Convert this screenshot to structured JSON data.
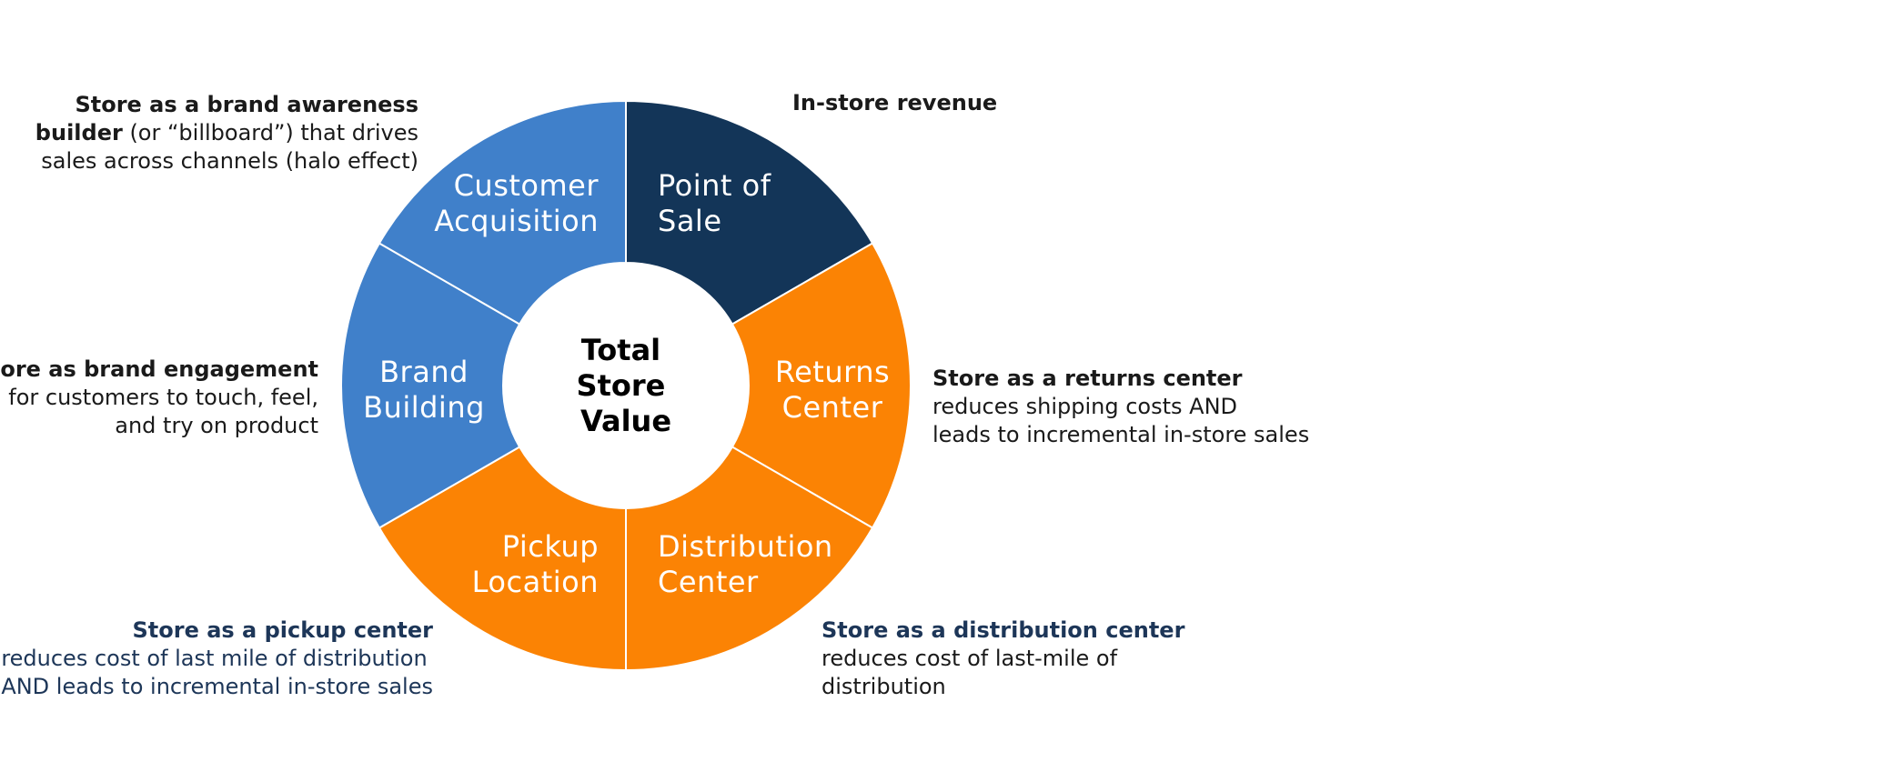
{
  "diagram": {
    "center_title_lines": [
      "Total",
      "Store",
      "Value"
    ],
    "colors": {
      "navy": "#133558",
      "orange": "#fb8304",
      "blue": "#4080ca",
      "divider": "#ffffff"
    },
    "segments": [
      {
        "id": "point-of-sale",
        "lines": [
          "Point of",
          "Sale"
        ],
        "color": "#133558"
      },
      {
        "id": "returns-center",
        "lines": [
          "Returns",
          "Center"
        ],
        "color": "#fb8304"
      },
      {
        "id": "distribution-center",
        "lines": [
          "Distribution",
          "Center"
        ],
        "color": "#fb8304"
      },
      {
        "id": "pickup-location",
        "lines": [
          "Pickup",
          "Location"
        ],
        "color": "#fb8304"
      },
      {
        "id": "brand-building",
        "lines": [
          "Brand",
          "Building"
        ],
        "color": "#4080ca"
      },
      {
        "id": "customer-acquisition",
        "lines": [
          "Customer",
          "Acquisition"
        ],
        "color": "#4080ca"
      }
    ]
  },
  "callouts": {
    "in_store_revenue": {
      "title": "In-store revenue"
    },
    "returns": {
      "title": "Store as a returns center",
      "line1": "reduces shipping costs AND",
      "line2": "leads to incremental in-store sales"
    },
    "distribution": {
      "title": "Store as a distribution center",
      "line1": "reduces cost of last-mile of",
      "line2": "distribution"
    },
    "pickup": {
      "title": "Store as a pickup center",
      "line1": "reduces cost of last mile of distribution",
      "line2": "AND leads to incremental in-store sales"
    },
    "engagement": {
      "title": "Store as brand engagement",
      "line1": "for customers to touch, feel,",
      "line2": "and try on product"
    },
    "awareness": {
      "title_part1": "Store as a brand awareness",
      "title_part2": "builder",
      "line1_rest": " (or “billboard”) that drives",
      "line2": "sales across channels (halo effect)"
    }
  }
}
